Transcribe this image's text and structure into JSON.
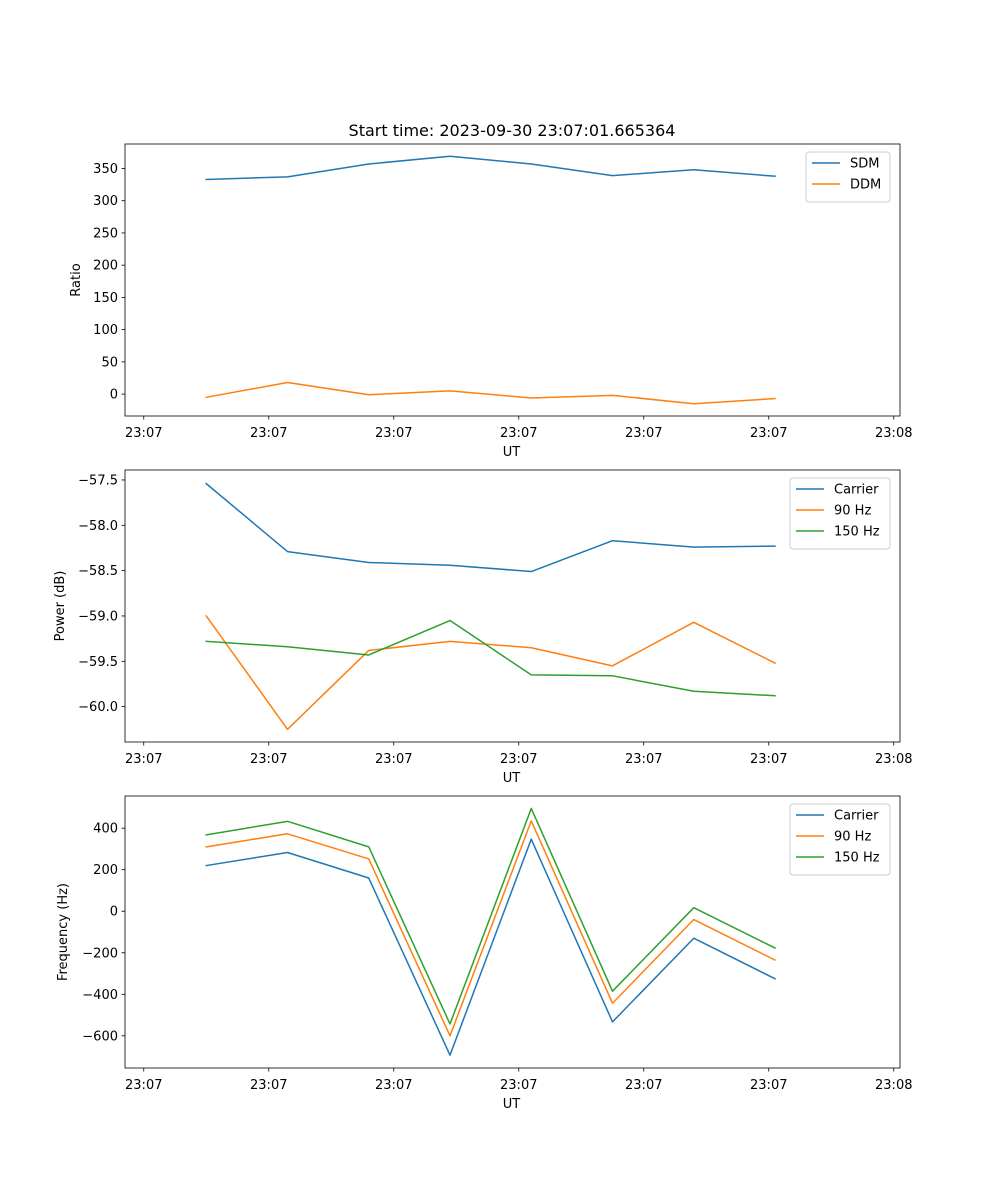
{
  "colors": {
    "blue": "#1f77b4",
    "orange": "#ff7f0e",
    "green": "#2ca02c"
  },
  "figure_title": "Start time: 2023-09-30 23:07:01.665364",
  "chart_data": [
    {
      "type": "line",
      "title": "Start time: 2023-09-30 23:07:01.665364",
      "xlabel": "UT",
      "ylabel": "Ratio",
      "xlim": [
        -0.15,
        6.05
      ],
      "ylim": [
        -34,
        388
      ],
      "x_ticks": [
        0,
        1,
        2,
        3,
        4,
        5,
        6
      ],
      "x_tick_labels": [
        "23:07",
        "23:07",
        "23:07",
        "23:07",
        "23:07",
        "23:07",
        "23:08"
      ],
      "y_ticks": [
        0,
        50,
        100,
        150,
        200,
        250,
        300,
        350
      ],
      "y_tick_labels": [
        "0",
        "50",
        "100",
        "150",
        "200",
        "250",
        "300",
        "350"
      ],
      "legend_position": "top-right",
      "x": [
        0.5,
        1.15,
        1.8,
        2.45,
        3.1,
        3.75,
        4.4,
        5.05
      ],
      "series": [
        {
          "name": "SDM",
          "color": "#1f77b4",
          "values": [
            333,
            337,
            357,
            369,
            357,
            339,
            348,
            338
          ]
        },
        {
          "name": "DDM",
          "color": "#ff7f0e",
          "values": [
            -5,
            18,
            -1,
            5,
            -6,
            -2,
            -15,
            -7
          ]
        }
      ]
    },
    {
      "type": "line",
      "title": "",
      "xlabel": "UT",
      "ylabel": "Power (dB)",
      "xlim": [
        -0.15,
        6.05
      ],
      "ylim": [
        -60.39,
        -57.39
      ],
      "x_ticks": [
        0,
        1,
        2,
        3,
        4,
        5,
        6
      ],
      "x_tick_labels": [
        "23:07",
        "23:07",
        "23:07",
        "23:07",
        "23:07",
        "23:07",
        "23:08"
      ],
      "y_ticks": [
        -60.0,
        -59.5,
        -59.0,
        -58.5,
        -58.0,
        -57.5
      ],
      "y_tick_labels": [
        "−60.0",
        "−59.5",
        "−59.0",
        "−58.5",
        "−58.0",
        "−57.5"
      ],
      "legend_position": "top-right",
      "x": [
        0.5,
        1.15,
        1.8,
        2.45,
        3.1,
        3.75,
        4.4,
        5.05
      ],
      "series": [
        {
          "name": "Carrier",
          "color": "#1f77b4",
          "values": [
            -57.54,
            -58.29,
            -58.41,
            -58.44,
            -58.51,
            -58.17,
            -58.24,
            -58.23
          ]
        },
        {
          "name": "90 Hz",
          "color": "#ff7f0e",
          "values": [
            -59.0,
            -60.25,
            -59.38,
            -59.28,
            -59.35,
            -59.55,
            -59.07,
            -59.52
          ]
        },
        {
          "name": "150 Hz",
          "color": "#2ca02c",
          "values": [
            -59.28,
            -59.34,
            -59.43,
            -59.05,
            -59.65,
            -59.66,
            -59.83,
            -59.88
          ]
        }
      ]
    },
    {
      "type": "line",
      "title": "",
      "xlabel": "UT",
      "ylabel": "Frequency (Hz)",
      "xlim": [
        -0.15,
        6.05
      ],
      "ylim": [
        -755,
        555
      ],
      "x_ticks": [
        0,
        1,
        2,
        3,
        4,
        5,
        6
      ],
      "x_tick_labels": [
        "23:07",
        "23:07",
        "23:07",
        "23:07",
        "23:07",
        "23:07",
        "23:08"
      ],
      "y_ticks": [
        -600,
        -400,
        -200,
        0,
        200,
        400
      ],
      "y_tick_labels": [
        "−600",
        "−400",
        "−200",
        "0",
        "200",
        "400"
      ],
      "legend_position": "top-right",
      "x": [
        0.5,
        1.15,
        1.8,
        2.45,
        3.1,
        3.75,
        4.4,
        5.05
      ],
      "series": [
        {
          "name": "Carrier",
          "color": "#1f77b4",
          "values": [
            220,
            283,
            160,
            -693,
            347,
            -533,
            -130,
            -325
          ]
        },
        {
          "name": "90 Hz",
          "color": "#ff7f0e",
          "values": [
            310,
            373,
            252,
            -600,
            435,
            -443,
            -40,
            -235
          ]
        },
        {
          "name": "150 Hz",
          "color": "#2ca02c",
          "values": [
            368,
            433,
            310,
            -543,
            495,
            -385,
            17,
            -177
          ]
        }
      ]
    }
  ]
}
